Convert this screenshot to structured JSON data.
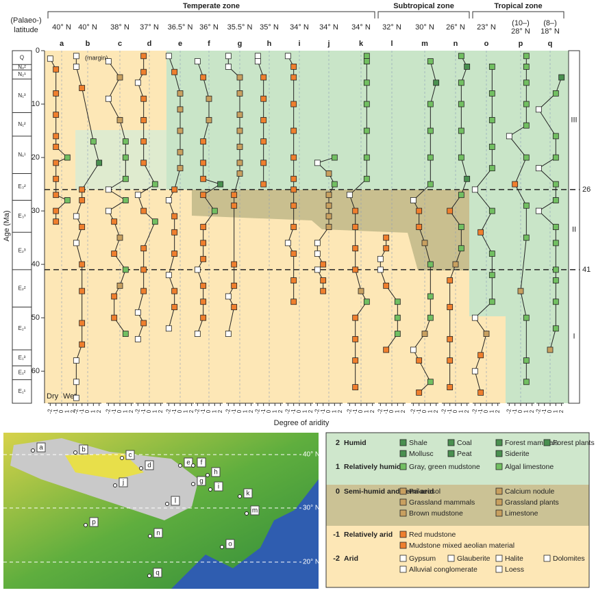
{
  "chart_data": {
    "type": "aridity-columns",
    "zones": [
      {
        "label": "Temperate zone",
        "from": 0,
        "to": 10
      },
      {
        "label": "Subtropical zone",
        "from": 11,
        "to": 13
      },
      {
        "label": "Tropical zone",
        "from": 14,
        "to": 16
      }
    ],
    "latitude_title": [
      "(Palaeo-)",
      "latitude"
    ],
    "ylabel": "Age (Ma)",
    "xlabel": "Degree of aridity",
    "dry": "Dry",
    "wet": "Wet",
    "annotation": "(margin)",
    "ylim": [
      0,
      66
    ],
    "yticks": [
      0,
      10,
      20,
      30,
      40,
      50,
      60
    ],
    "xlim": [
      -2.4,
      2.4
    ],
    "xticks": [
      -2,
      -1,
      0,
      1,
      2
    ],
    "marker_colors": [
      "#ffffff",
      "#ef7f2e",
      "#c8a060",
      "#72bf62",
      "#4a9050"
    ],
    "stage_boundaries": [
      26,
      41
    ],
    "stages": [
      "III",
      "II",
      "I"
    ],
    "epochs": [
      {
        "label": "Q",
        "start": 0,
        "end": 2.6
      },
      {
        "label": "N₂²",
        "start": 2.6,
        "end": 3.6
      },
      {
        "label": "N₂¹",
        "start": 3.6,
        "end": 5.3
      },
      {
        "label": "N₁³",
        "start": 5.3,
        "end": 11.6
      },
      {
        "label": "N₁²",
        "start": 11.6,
        "end": 16
      },
      {
        "label": "N₁¹",
        "start": 16,
        "end": 23
      },
      {
        "label": "E₃²",
        "start": 23,
        "end": 28
      },
      {
        "label": "E₃¹",
        "start": 28,
        "end": 34
      },
      {
        "label": "E₂³",
        "start": 34,
        "end": 41
      },
      {
        "label": "E₂²",
        "start": 41,
        "end": 48
      },
      {
        "label": "E₂¹",
        "start": 48,
        "end": 56
      },
      {
        "label": "E₁³",
        "start": 56,
        "end": 59
      },
      {
        "label": "E₁²",
        "start": 59,
        "end": 61.6
      },
      {
        "label": "E₁¹",
        "start": 61.6,
        "end": 66
      }
    ],
    "columns": [
      {
        "letter": "a",
        "latitude": [
          "40° N"
        ],
        "ages": [
          1.5,
          3.5,
          8,
          12,
          16,
          18,
          20,
          21,
          24,
          27,
          28,
          30,
          32
        ],
        "values": [
          -2,
          -1,
          -1,
          -1,
          -1,
          -1,
          1,
          -1,
          -1,
          -1,
          1,
          -1,
          -1
        ]
      },
      {
        "letter": "b",
        "latitude": [
          "40° N"
        ],
        "ages": [
          1,
          3,
          7,
          17,
          21,
          26,
          28,
          31,
          33,
          36,
          40,
          45,
          51,
          55,
          58,
          62,
          65
        ],
        "values": [
          -2,
          -2,
          -1,
          1,
          2,
          -1,
          -1,
          -2,
          -1,
          -2,
          -1,
          -1,
          -1,
          -1,
          -2,
          -2,
          -2
        ]
      },
      {
        "letter": "c",
        "latitude": [
          "38° N"
        ],
        "ages": [
          2,
          5,
          9,
          13,
          17,
          20,
          24,
          26,
          28,
          30,
          32,
          35,
          38,
          41,
          44,
          46,
          50,
          53
        ],
        "values": [
          -2,
          0,
          -2,
          0,
          1,
          1,
          1,
          -2,
          1,
          -2,
          -1,
          0,
          -1,
          1,
          0,
          -1,
          -1,
          1
        ]
      },
      {
        "letter": "d",
        "latitude": [
          "37° N"
        ],
        "ages": [
          1,
          4,
          6,
          9,
          13,
          17,
          21,
          25,
          27,
          30,
          32,
          37,
          41,
          45,
          49,
          51,
          54
        ],
        "values": [
          -1,
          -1,
          -2,
          -1,
          -1,
          -1,
          -1,
          1,
          -2,
          -1,
          1,
          -1,
          -1,
          -1,
          -2,
          -1,
          -2
        ]
      },
      {
        "letter": "e",
        "latitude": [
          "36.5° N"
        ],
        "ages": [
          1,
          4,
          8,
          11,
          15,
          19,
          22,
          26,
          28,
          31,
          34,
          38,
          42,
          45,
          48,
          52
        ],
        "values": [
          -2,
          -1,
          0,
          0,
          0,
          0,
          0,
          -1,
          -2,
          -1,
          -1,
          -1,
          -2,
          -1,
          -1,
          -2
        ]
      },
      {
        "letter": "f",
        "latitude": [
          "36° N"
        ],
        "ages": [
          2,
          5,
          9,
          13,
          17,
          21,
          24,
          25,
          27,
          30,
          33,
          36,
          39,
          41,
          44,
          47,
          50,
          53
        ],
        "values": [
          -2,
          -1,
          0,
          0,
          -1,
          -1,
          -1,
          2,
          -1,
          1,
          -1,
          -1,
          -1,
          -2,
          -1,
          -1,
          -1,
          -2
        ]
      },
      {
        "letter": "g",
        "latitude": [
          "35.5° N"
        ],
        "ages": [
          1,
          3,
          5,
          8,
          12,
          15,
          18,
          21,
          23,
          27,
          29,
          40,
          44,
          46,
          48,
          53
        ],
        "values": [
          -2,
          -2,
          0,
          0,
          0,
          0,
          0,
          0,
          0,
          -1,
          -1,
          -1,
          -1,
          -2,
          -1,
          -2
        ]
      },
      {
        "letter": "h",
        "latitude": [
          "35° N"
        ],
        "ages": [
          1,
          2,
          5,
          9,
          13,
          17,
          21,
          25
        ],
        "values": [
          -2,
          -2,
          -1,
          -1,
          -1,
          -1,
          -1,
          -1
        ]
      },
      {
        "letter": "i",
        "latitude": [
          "34° N"
        ],
        "ages": [
          1,
          3,
          5,
          10,
          15,
          20,
          24,
          26,
          29,
          33,
          36,
          38,
          43,
          47
        ],
        "values": [
          -2,
          -1,
          -1,
          -1,
          -1,
          -1,
          -1,
          -1,
          -1,
          -1,
          -2,
          -1,
          -1,
          -1
        ]
      },
      {
        "letter": "j",
        "latitude": [
          "34° N"
        ],
        "ages": [
          20,
          21,
          23,
          25,
          27,
          29,
          31,
          33,
          36,
          38,
          40,
          41,
          43,
          45
        ],
        "values": [
          1,
          -2,
          0,
          1,
          0,
          0,
          0,
          0,
          -2,
          -2,
          -1,
          -2,
          -1,
          -1
        ]
      },
      {
        "letter": "k",
        "latitude": [
          "34° N"
        ],
        "ages": [
          1,
          2,
          6,
          10,
          15,
          20,
          24,
          27,
          30,
          33,
          37,
          41,
          45,
          47,
          50,
          54,
          58,
          63
        ],
        "values": [
          1,
          1,
          1,
          1,
          1,
          1,
          1,
          -2,
          -1,
          -1,
          -1,
          -1,
          0,
          1,
          -1,
          -1,
          -1,
          -1
        ]
      },
      {
        "letter": "l",
        "latitude": [
          "32° N"
        ],
        "ages": [
          35,
          37,
          39,
          41,
          44,
          47,
          50,
          53,
          56
        ],
        "values": [
          -1,
          -1,
          -2,
          -2,
          -1,
          1,
          1,
          1,
          -1
        ]
      },
      {
        "letter": "m",
        "latitude": [
          "30° N"
        ],
        "ages": [
          2,
          6,
          10,
          15,
          20,
          25,
          28,
          30,
          33,
          36,
          40,
          46,
          50,
          53,
          56,
          58,
          62,
          64
        ],
        "values": [
          1,
          2,
          1,
          1,
          1,
          1,
          -2,
          -1,
          -1,
          0,
          1,
          1,
          1,
          0,
          -2,
          -1,
          1,
          -1
        ]
      },
      {
        "letter": "n",
        "latitude": [
          "26° N"
        ],
        "ages": [
          1,
          3,
          6,
          10,
          15,
          20,
          24,
          27,
          30,
          33,
          37,
          40,
          43,
          48,
          54,
          58,
          63
        ],
        "values": [
          1,
          2,
          1,
          1,
          1,
          1,
          2,
          1,
          -1,
          1,
          1,
          0,
          -1,
          -1,
          -1,
          -1,
          -1
        ]
      },
      {
        "letter": "o",
        "latitude": [
          "23° N"
        ],
        "ages": [
          3,
          8,
          13,
          18,
          22,
          26,
          30,
          34,
          38,
          42,
          47,
          50,
          53,
          57,
          60,
          64
        ],
        "values": [
          1,
          1,
          1,
          1,
          1,
          -2,
          1,
          -1,
          1,
          1,
          1,
          -2,
          0,
          -1,
          -2,
          -1
        ]
      },
      {
        "letter": "p",
        "latitude": [
          "(10–)",
          "28° N"
        ],
        "ages": [
          1,
          3,
          6,
          10,
          14,
          16,
          20,
          25,
          29,
          35,
          45,
          50,
          58,
          62
        ],
        "values": [
          1,
          1,
          1,
          1,
          1,
          -2,
          1,
          -1,
          1,
          1,
          0,
          1,
          1,
          1
        ]
      },
      {
        "letter": "q",
        "latitude": [
          "(8–)",
          "18° N"
        ],
        "ages": [
          5,
          8,
          11,
          16,
          20,
          22,
          25,
          28,
          30,
          33,
          36,
          41,
          43,
          47,
          52,
          56
        ],
        "values": [
          2,
          1,
          -2,
          1,
          1,
          -2,
          1,
          1,
          -2,
          1,
          1,
          1,
          1,
          1,
          1,
          0
        ]
      }
    ]
  },
  "map": {
    "sites": [
      "a",
      "b",
      "c",
      "d",
      "e",
      "f",
      "g",
      "h",
      "i",
      "j",
      "k",
      "l",
      "m",
      "n",
      "o",
      "p",
      "q"
    ],
    "latitudes": [
      "40° N",
      "30° N",
      "20° N"
    ]
  },
  "legend": {
    "levels": [
      {
        "value": 2,
        "label": "Humid",
        "rows": [
          [
            "Shale",
            "Coal",
            "Forest mammals",
            "Forest plants"
          ],
          [
            "Mollusc",
            "Peat",
            "Siderite"
          ]
        ]
      },
      {
        "value": 1,
        "label": "Relatively humid",
        "rows": [
          [
            "Gray, green mudstone",
            "Algal limestone"
          ]
        ]
      },
      {
        "value": 0,
        "label": "Semi-humid and semi-arid",
        "rows": [
          [
            "Palaeosol",
            "Calcium nodule"
          ],
          [
            "Grassland mammals",
            "Grassland plants"
          ],
          [
            "Brown mudstone",
            "Limestone"
          ]
        ]
      },
      {
        "value": -1,
        "label": "Relatively arid",
        "rows": [
          [
            "Red mudstone"
          ],
          [
            "Mudstone mixed aeolian material"
          ]
        ]
      },
      {
        "value": -2,
        "label": "Arid",
        "rows": [
          [
            "Gypsum",
            "Glauberite",
            "Halite",
            "Dolomites"
          ],
          [
            "Alluvial conglomerate",
            "Loess"
          ]
        ]
      }
    ]
  }
}
